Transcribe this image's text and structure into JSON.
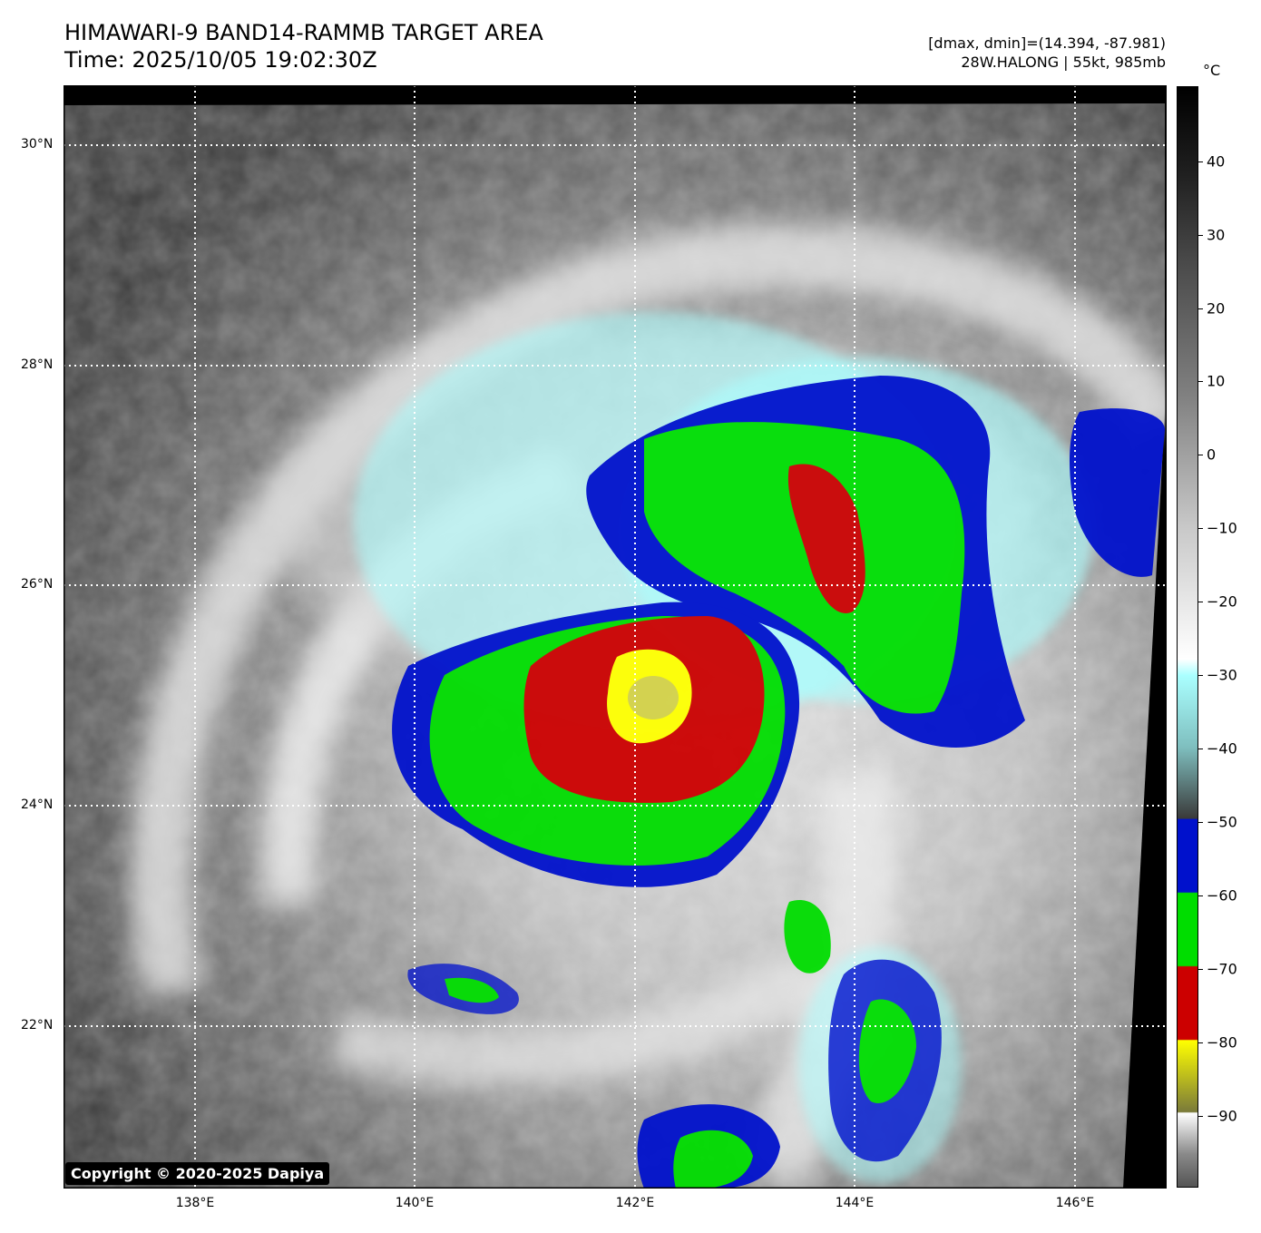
{
  "header": {
    "title": "HIMAWARI-9 BAND14-RAMMB TARGET AREA",
    "time": "Time: 2025/10/05 19:02:30Z",
    "range": "[dmax, dmin]=(14.394, -87.981)",
    "storm": "28W.HALONG | 55kt, 985mb"
  },
  "map": {
    "lat_labels": [
      "30°N",
      "28°N",
      "26°N",
      "24°N",
      "22°N"
    ],
    "lon_labels": [
      "138°E",
      "140°E",
      "142°E",
      "144°E",
      "146°E"
    ],
    "copyright": "Copyright © 2020-2025 Dapiya"
  },
  "colorbar": {
    "unit": "°C",
    "ticks": [
      "40",
      "30",
      "20",
      "10",
      "0",
      "−10",
      "−20",
      "−30",
      "−40",
      "−50",
      "−60",
      "−70",
      "−80",
      "−90"
    ],
    "colors": {
      "blue": "#0011cc",
      "green": "#00dd00",
      "red": "#cc0000",
      "yellow": "#ffff00",
      "cyan": "#aaffff"
    }
  }
}
